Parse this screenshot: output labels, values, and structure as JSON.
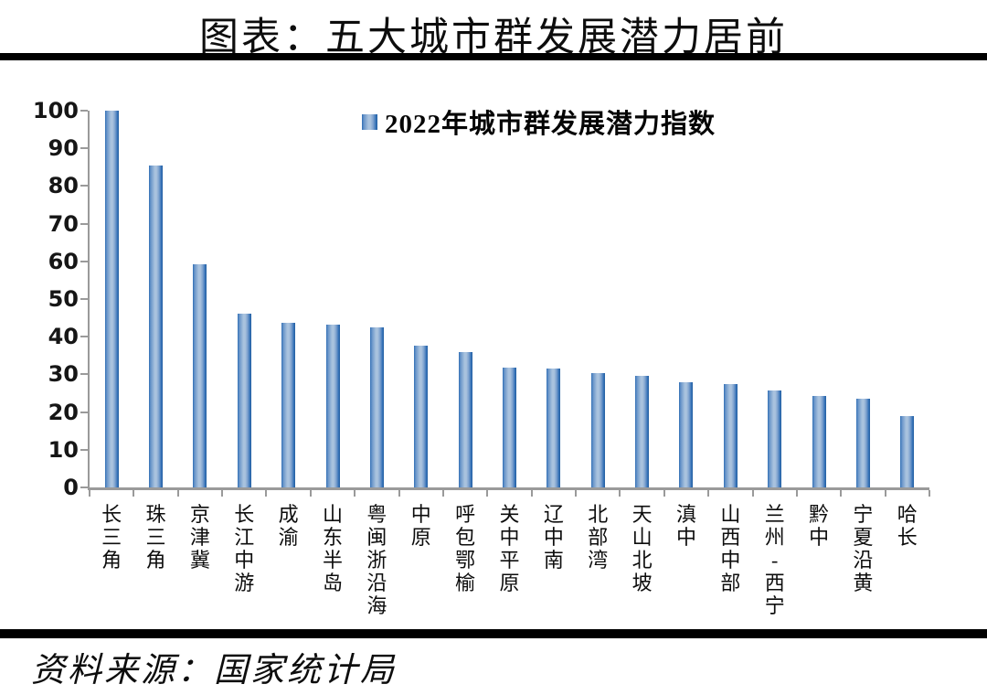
{
  "title": "图表：五大城市群发展潜力居前",
  "source": "资料来源：国家统计局",
  "colors": {
    "bar_edge": "#2E6DB4",
    "bar_edge_dark": "#255D9C",
    "bar_light": "#A9C2DE",
    "axis": "#9A9A9A",
    "text": "#000000",
    "rule": "#000000"
  },
  "chart_data": {
    "type": "bar",
    "title": "图表：五大城市群发展潜力居前",
    "legend": [
      "2022年城市群发展潜力指数"
    ],
    "legend_position": "top-center",
    "categories": [
      "长三角",
      "珠三角",
      "京津冀",
      "长江中游",
      "成渝",
      "山东半岛",
      "粤闽浙沿海",
      "中原",
      "呼包鄂榆",
      "关中平原",
      "辽中南",
      "北部湾",
      "天山北坡",
      "滇中",
      "山西中部",
      "兰州-西宁",
      "黔中",
      "宁夏沿黄",
      "哈长"
    ],
    "values": [
      100,
      85.5,
      59.2,
      46.2,
      43.7,
      43.2,
      42.5,
      37.7,
      36.0,
      31.8,
      31.6,
      30.4,
      29.7,
      27.9,
      27.4,
      25.8,
      24.3,
      23.6,
      18.9
    ],
    "xlabel": "",
    "ylabel": "",
    "ylim": [
      0,
      100
    ],
    "ytick_step": 10,
    "grid": false,
    "source_note": "资料来源：国家统计局"
  }
}
